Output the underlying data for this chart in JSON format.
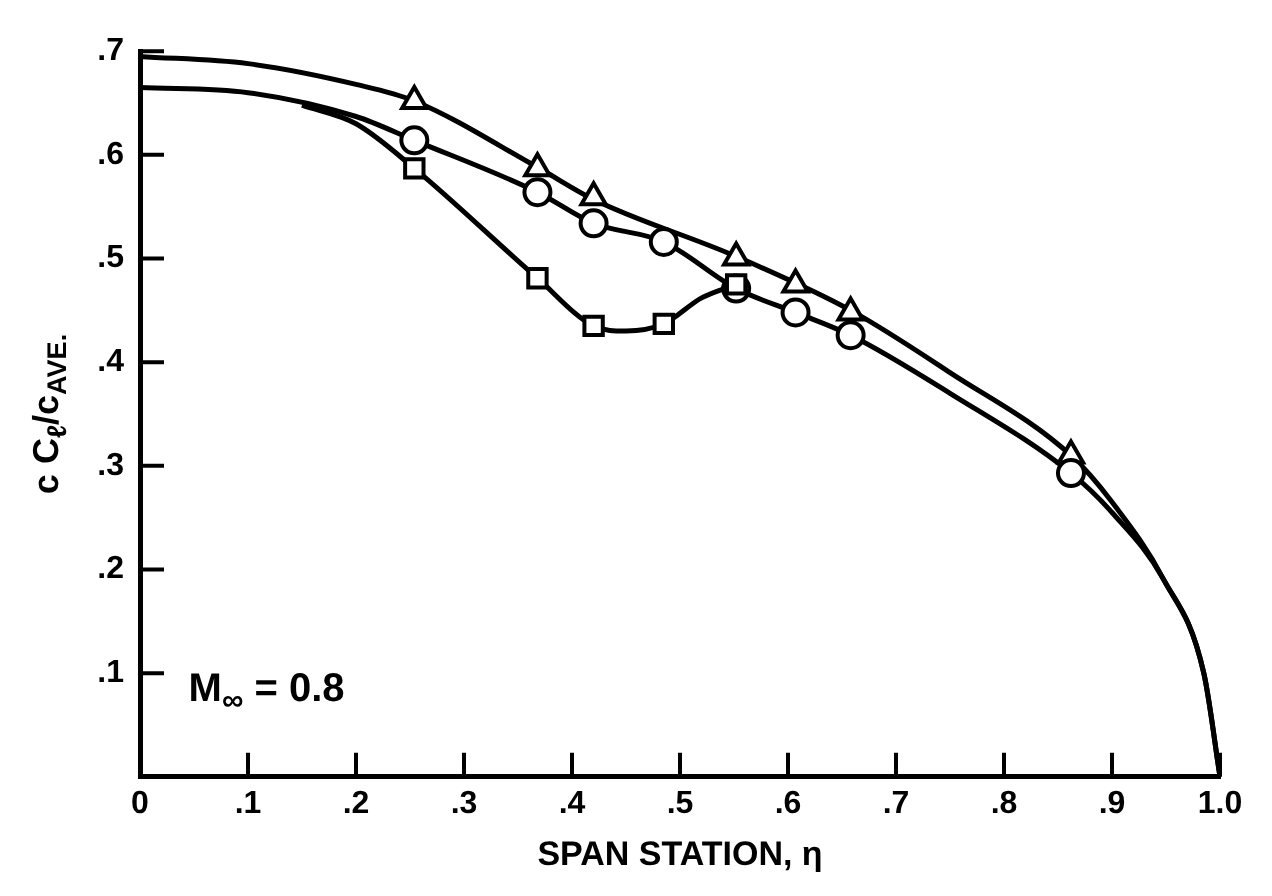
{
  "chart_data": {
    "type": "line",
    "xlabel": "SPAN STATION, η",
    "ylabel": "c C$_{ℓ}$/c$_{AVE.}$",
    "xlim": [
      0,
      1
    ],
    "ylim": [
      0,
      0.7
    ],
    "xticks": [
      0,
      {
        "value": 0.1,
        "label": ".1"
      },
      {
        "value": 0.2,
        "label": ".2"
      },
      {
        "value": 0.3,
        "label": ".3"
      },
      {
        "value": 0.4,
        "label": ".4"
      },
      {
        "value": 0.5,
        "label": ".5"
      },
      {
        "value": 0.6,
        "label": ".6"
      },
      {
        "value": 0.7,
        "label": ".7"
      },
      {
        "value": 0.8,
        "label": ".8"
      },
      {
        "value": 0.9,
        "label": ".9"
      },
      {
        "value": 1,
        "label": "1.0"
      }
    ],
    "yticks": [
      {
        "value": 0,
        "label": null
      },
      {
        "value": 0.1,
        "label": ".1"
      },
      {
        "value": 0.2,
        "label": ".2"
      },
      {
        "value": 0.3,
        "label": ".3"
      },
      {
        "value": 0.4,
        "label": ".4"
      },
      {
        "value": 0.5,
        "label": ".5"
      },
      {
        "value": 0.6,
        "label": ".6"
      },
      {
        "value": 0.7,
        "label": ".7"
      }
    ],
    "grid": false,
    "legend": false,
    "annotations": [
      "M$_{∞}$ = 0.8"
    ],
    "series": [
      {
        "marker": "none",
        "line_style": "solid",
        "color": "#000000",
        "x": [
          0,
          0.1,
          0.2,
          0.254,
          0.368,
          0.42,
          0.552,
          0.658,
          0.75,
          0.862,
          0.9,
          0.948,
          0.985,
          1
        ],
        "values": [
          0.695,
          0.688,
          0.668,
          0.652,
          0.588,
          0.557,
          0.502,
          0.45,
          0.39,
          0.31,
          0.265,
          0.19,
          0.1,
          0
        ]
      },
      {
        "marker": "none",
        "line_style": "solid",
        "color": "#000000",
        "x": [
          0,
          0.1,
          0.2,
          0.254,
          0.368,
          0.42,
          0.485,
          0.552,
          0.607,
          0.658,
          0.75,
          0.862,
          0.9,
          0.948,
          0.985,
          1
        ],
        "values": [
          0.665,
          0.66,
          0.637,
          0.614,
          0.564,
          0.534,
          0.516,
          0.471,
          0.448,
          0.426,
          0.37,
          0.293,
          0.255,
          0.19,
          0.1,
          0
        ]
      },
      {
        "marker": "none",
        "line_style": "solid",
        "color": "#000000",
        "x": [
          0.15,
          0.2,
          0.254,
          0.368,
          0.42,
          0.45,
          0.485,
          0.52,
          0.552
        ],
        "values": [
          0.648,
          0.63,
          0.587,
          0.481,
          0.435,
          0.43,
          0.437,
          0.462,
          0.475
        ]
      },
      {
        "type": "scatter",
        "marker": "triangle",
        "color": "#000000",
        "x": [
          0.254,
          0.368,
          0.42,
          0.552,
          0.607,
          0.658,
          0.862
        ],
        "values": [
          0.652,
          0.587,
          0.559,
          0.501,
          0.475,
          0.448,
          0.31
        ]
      },
      {
        "type": "scatter",
        "marker": "circle",
        "color": "#000000",
        "x": [
          0.254,
          0.368,
          0.42,
          0.485,
          0.552,
          0.607,
          0.658,
          0.862
        ],
        "values": [
          0.614,
          0.564,
          0.534,
          0.516,
          0.471,
          0.448,
          0.426,
          0.293
        ]
      },
      {
        "type": "scatter",
        "marker": "square",
        "color": "#000000",
        "x": [
          0.254,
          0.368,
          0.42,
          0.485,
          0.552
        ],
        "values": [
          0.587,
          0.481,
          0.435,
          0.437,
          0.475
        ]
      }
    ]
  }
}
